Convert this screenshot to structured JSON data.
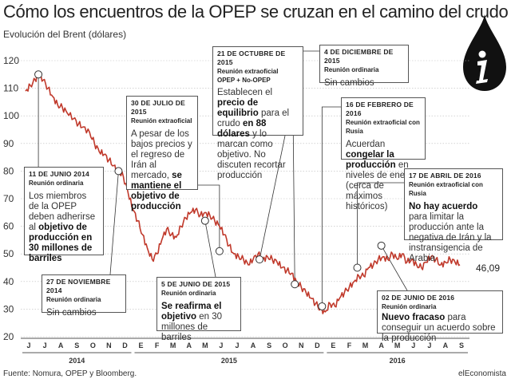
{
  "header": {
    "title": "Cómo los encuentros de la OPEP se cruzan en el camino del crudo",
    "subtitle": "Evolución del Brent (dólares)"
  },
  "footer": {
    "source": "Fuente: Nomura, OPEP y Bloomberg.",
    "brand": "elEconomista"
  },
  "icon": {
    "name": "oil-drop-info-icon",
    "color": "#111111"
  },
  "colors": {
    "line": "#c0392b",
    "grid": "#bbbbbb",
    "box_border": "#555555",
    "text": "#222222"
  },
  "chart_data": {
    "type": "line",
    "ylim": [
      20,
      120
    ],
    "yticks": [
      "20",
      "30",
      "40",
      "50",
      "60",
      "70",
      "80",
      "90",
      "100",
      "110",
      "120"
    ],
    "month_labels": [
      "J",
      "J",
      "A",
      "S",
      "O",
      "N",
      "D",
      "E",
      "F",
      "M",
      "A",
      "M",
      "J",
      "J",
      "A",
      "S",
      "O",
      "N",
      "D",
      "E",
      "F",
      "M",
      "A",
      "M",
      "J",
      "J",
      "A",
      "S"
    ],
    "year_labels": [
      "2014",
      "2015",
      "2016"
    ],
    "last_value_label": "46,09",
    "series": [
      {
        "values": [
          [
            0,
            109
          ],
          [
            0.3,
            111
          ],
          [
            0.6,
            113
          ],
          [
            0.8,
            115
          ],
          [
            1.1,
            113
          ],
          [
            1.4,
            110
          ],
          [
            1.7,
            107
          ],
          [
            2.0,
            104
          ],
          [
            2.3,
            103
          ],
          [
            2.6,
            101
          ],
          [
            3.0,
            99
          ],
          [
            3.3,
            97
          ],
          [
            3.6,
            96
          ],
          [
            4.0,
            94
          ],
          [
            4.3,
            90
          ],
          [
            4.6,
            87
          ],
          [
            4.9,
            86
          ],
          [
            5.2,
            84
          ],
          [
            5.5,
            82
          ],
          [
            5.8,
            80
          ],
          [
            6.1,
            78
          ],
          [
            6.4,
            72
          ],
          [
            6.7,
            66
          ],
          [
            7.0,
            62
          ],
          [
            7.3,
            57
          ],
          [
            7.6,
            52
          ],
          [
            7.9,
            48
          ],
          [
            8.2,
            50
          ],
          [
            8.5,
            55
          ],
          [
            8.8,
            59
          ],
          [
            9.1,
            57
          ],
          [
            9.4,
            56
          ],
          [
            9.7,
            60
          ],
          [
            10.0,
            63
          ],
          [
            10.3,
            65
          ],
          [
            10.6,
            66
          ],
          [
            10.9,
            64
          ],
          [
            11.2,
            65
          ],
          [
            11.5,
            64
          ],
          [
            11.8,
            62
          ],
          [
            12.1,
            60
          ],
          [
            12.4,
            57
          ],
          [
            12.7,
            53
          ],
          [
            13.0,
            50
          ],
          [
            13.3,
            49
          ],
          [
            13.6,
            48
          ],
          [
            13.9,
            46
          ],
          [
            14.2,
            48
          ],
          [
            14.5,
            50
          ],
          [
            14.8,
            48
          ],
          [
            15.1,
            49
          ],
          [
            15.4,
            48
          ],
          [
            15.7,
            47
          ],
          [
            16.0,
            45
          ],
          [
            16.3,
            44
          ],
          [
            16.6,
            43
          ],
          [
            16.9,
            40
          ],
          [
            17.2,
            38
          ],
          [
            17.5,
            36
          ],
          [
            17.8,
            34
          ],
          [
            18.1,
            32
          ],
          [
            18.4,
            30
          ],
          [
            18.7,
            29
          ],
          [
            19.0,
            32
          ],
          [
            19.3,
            31
          ],
          [
            19.6,
            34
          ],
          [
            19.9,
            36
          ],
          [
            20.2,
            38
          ],
          [
            20.5,
            40
          ],
          [
            20.8,
            42
          ],
          [
            21.1,
            42
          ],
          [
            21.4,
            45
          ],
          [
            21.7,
            46
          ],
          [
            22.0,
            48
          ],
          [
            22.3,
            49
          ],
          [
            22.6,
            48
          ],
          [
            22.9,
            50
          ],
          [
            23.2,
            48
          ],
          [
            23.5,
            50
          ],
          [
            23.8,
            47
          ],
          [
            24.1,
            48
          ],
          [
            24.4,
            46
          ],
          [
            24.7,
            45
          ],
          [
            25.0,
            47
          ],
          [
            25.3,
            49
          ],
          [
            25.6,
            48
          ],
          [
            25.9,
            46
          ],
          [
            26.2,
            47
          ],
          [
            26.5,
            48
          ],
          [
            26.8,
            47
          ],
          [
            27.1,
            46.09
          ]
        ]
      }
    ],
    "events": [
      {
        "id": "2014-06-11",
        "x": 0.8,
        "y": 115
      },
      {
        "id": "2014-11-27",
        "x": 5.8,
        "y": 80
      },
      {
        "id": "2015-06-05",
        "x": 11.2,
        "y": 62
      },
      {
        "id": "2015-07-30",
        "x": 12.1,
        "y": 51
      },
      {
        "id": "2015-10-21",
        "x": 14.6,
        "y": 48
      },
      {
        "id": "2015-12-04",
        "x": 16.8,
        "y": 39
      },
      {
        "id": "2016-02-16",
        "x": 18.5,
        "y": 31
      },
      {
        "id": "2016-04-17",
        "x": 20.7,
        "y": 45
      },
      {
        "id": "2016-06-02",
        "x": 22.2,
        "y": 53
      }
    ]
  },
  "annotations": {
    "a1": {
      "date": "11 DE JUNIO 2014",
      "type": "Reunión ordinaria",
      "t1": "Los miembros de la OPEP deben adherirse al ",
      "b1": "objetivo de producción en 30 millones de barriles",
      "t2": ""
    },
    "a2": {
      "date": "27 DE NOVIEMBRE 2014",
      "type": "Reunión ordinaria",
      "t1": "Sin cambios"
    },
    "a3": {
      "date": "30 DE JULIO DE 2015",
      "type": "Reunión extraoficial",
      "t1": "A pesar de los bajos precios y el regreso de Irán al mercado, ",
      "b1": "se mantiene el objetivo de producción"
    },
    "a4": {
      "date": "5 DE JUNIO DE 2015",
      "type": "Reunión ordinaria",
      "b1": "Se reafirma el objetivo",
      "t1": " en 30 millones de barriles"
    },
    "a5": {
      "date": "21 DE OCTUBRE DE 2015",
      "type": "Reunión extraoficial",
      "type2": "OPEP + No-OPEP",
      "t1": "Establecen el ",
      "b1": "precio de equilibrio",
      "t2": " para el crudo ",
      "b2": "en 88 dólares",
      "t3": " y lo marcan como objetivo. No discuten recortar producción"
    },
    "a6": {
      "date": "4 DE DICIEMBRE DE 2015",
      "type": "Reunión ordinaria",
      "t1": "Sin cambios"
    },
    "a7": {
      "date": "16 DE FEBRERO DE 2016",
      "type": "Reunión extraoficial con Rusia",
      "t1": "Acuerdan ",
      "b1": "congelar la producción",
      "t2": " en niveles de enero (cerca de máximos históricos)"
    },
    "a8": {
      "date": "17 DE ABRIL DE 2016",
      "type": "Reunión extraoficial con Rusia",
      "b1": "No hay acuerdo",
      "t1": " para limitar la producción ante la negativa de Irán y la instransigencia de Arabia"
    },
    "a9": {
      "date": "02 DE JUNIO DE 2016",
      "type": "Reunión ordinaria",
      "b1": "Nuevo fracaso",
      "t1": " para conseguir un acuerdo sobre la producción"
    }
  }
}
